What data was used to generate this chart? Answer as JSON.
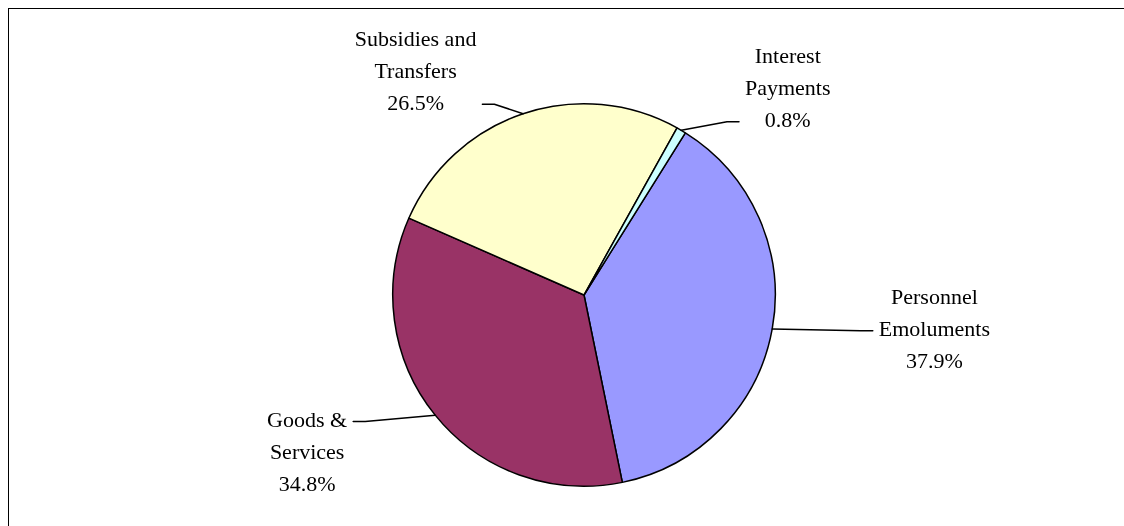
{
  "chart_data": {
    "type": "pie",
    "categories": [
      "Personnel Emoluments",
      "Goods & Services",
      "Subsidies and Transfers",
      "Interest Payments"
    ],
    "values": [
      37.9,
      34.8,
      26.5,
      0.8
    ],
    "colors": [
      "#9999ff",
      "#993366",
      "#ffffcc",
      "#ccffff"
    ],
    "value_labels": [
      "37.9%",
      "34.8%",
      "26.5%",
      "0.8%"
    ]
  }
}
